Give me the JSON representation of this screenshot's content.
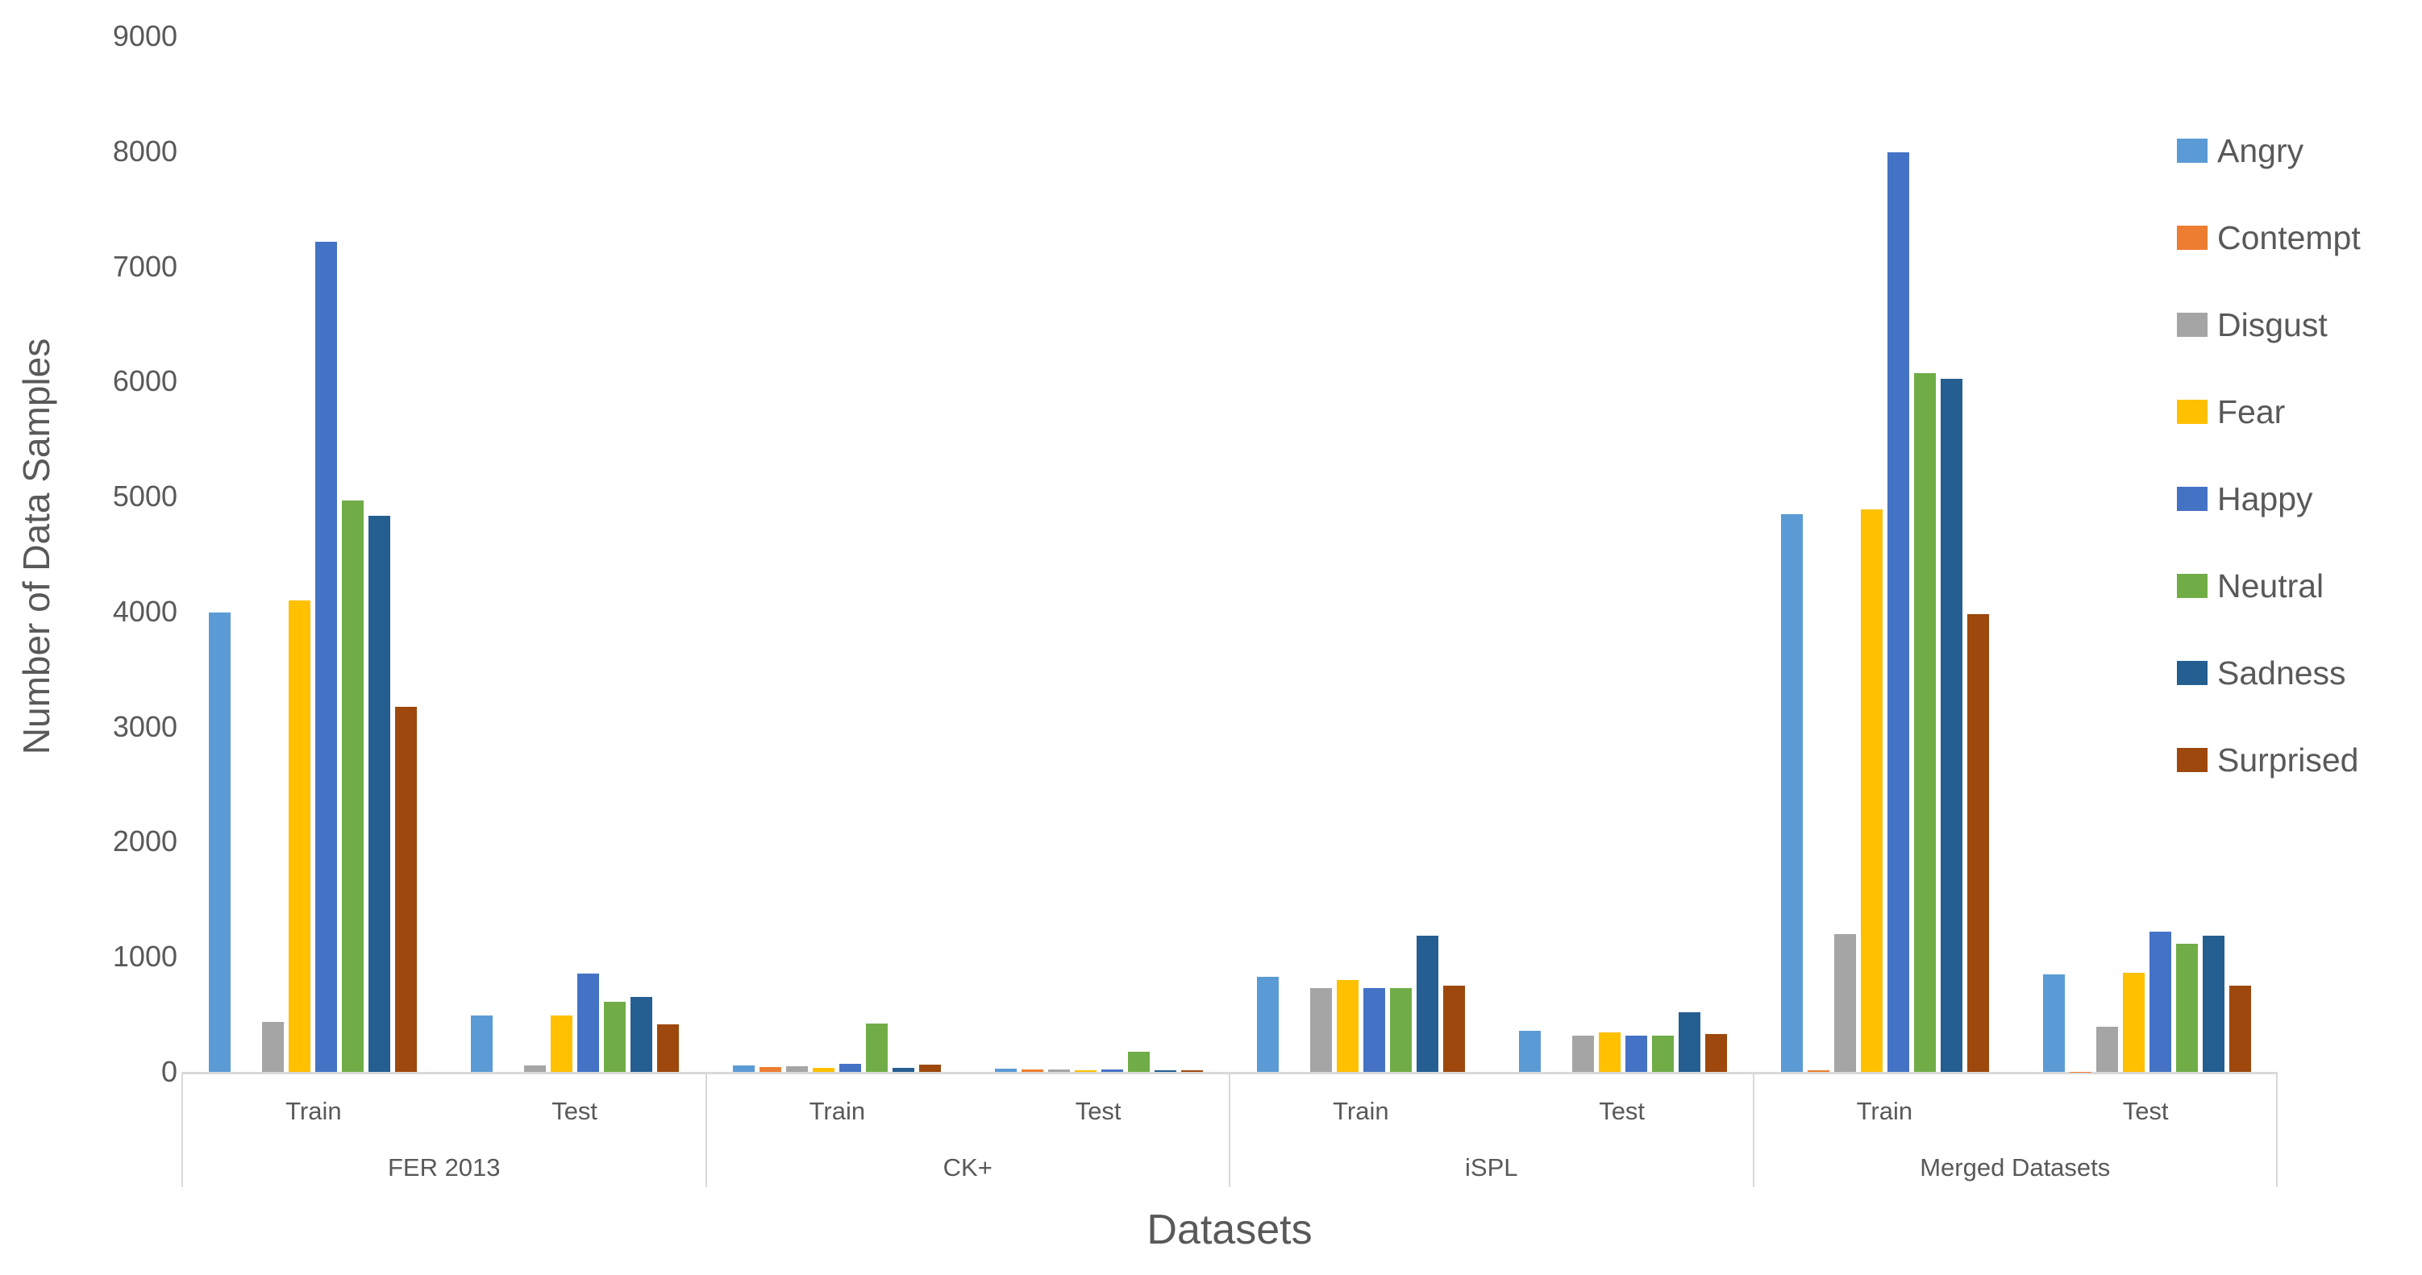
{
  "chart_data": {
    "type": "bar",
    "title": "",
    "xlabel": "Datasets",
    "ylabel": "Number of Data Samples",
    "ylim": [
      0,
      9000
    ],
    "yticks": [
      0,
      1000,
      2000,
      3000,
      4000,
      5000,
      6000,
      7000,
      8000,
      9000
    ],
    "grid": false,
    "legend_position": "right",
    "series_names": [
      "Angry",
      "Contempt",
      "Disgust",
      "Fear",
      "Happy",
      "Neutral",
      "Sadness",
      "Surprised"
    ],
    "series_colors": [
      "#5B9BD5",
      "#ED7D31",
      "#A5A5A5",
      "#FFC000",
      "#4472C4",
      "#70AD47",
      "#255E91",
      "#9E480E"
    ],
    "categories": [
      {
        "dataset": "FER 2013",
        "splits": [
          {
            "label": "Train",
            "values": [
              3995,
              0,
              436,
              4097,
              7215,
              4965,
              4830,
              3171
            ]
          },
          {
            "label": "Test",
            "values": [
              490,
              0,
              56,
              490,
              855,
              612,
              650,
              412
            ]
          }
        ]
      },
      {
        "dataset": "CK+",
        "splits": [
          {
            "label": "Train",
            "values": [
              55,
              40,
              50,
              38,
              68,
              420,
              38,
              65
            ]
          },
          {
            "label": "Test",
            "values": [
              25,
              20,
              22,
              16,
              20,
              175,
              16,
              14
            ]
          }
        ]
      },
      {
        "dataset": "iSPL",
        "splits": [
          {
            "label": "Train",
            "values": [
              830,
              0,
              730,
              800,
              730,
              730,
              1185,
              750
            ]
          },
          {
            "label": "Test",
            "values": [
              360,
              0,
              315,
              340,
              315,
              315,
              515,
              330
            ]
          }
        ]
      },
      {
        "dataset": "Merged Datasets",
        "splits": [
          {
            "label": "Train",
            "values": [
              4850,
              16,
              1200,
              4890,
              7990,
              6070,
              6020,
              3980
            ]
          },
          {
            "label": "Test",
            "values": [
              850,
              2,
              395,
              865,
              1220,
              1115,
              1185,
              750
            ]
          }
        ]
      }
    ]
  }
}
